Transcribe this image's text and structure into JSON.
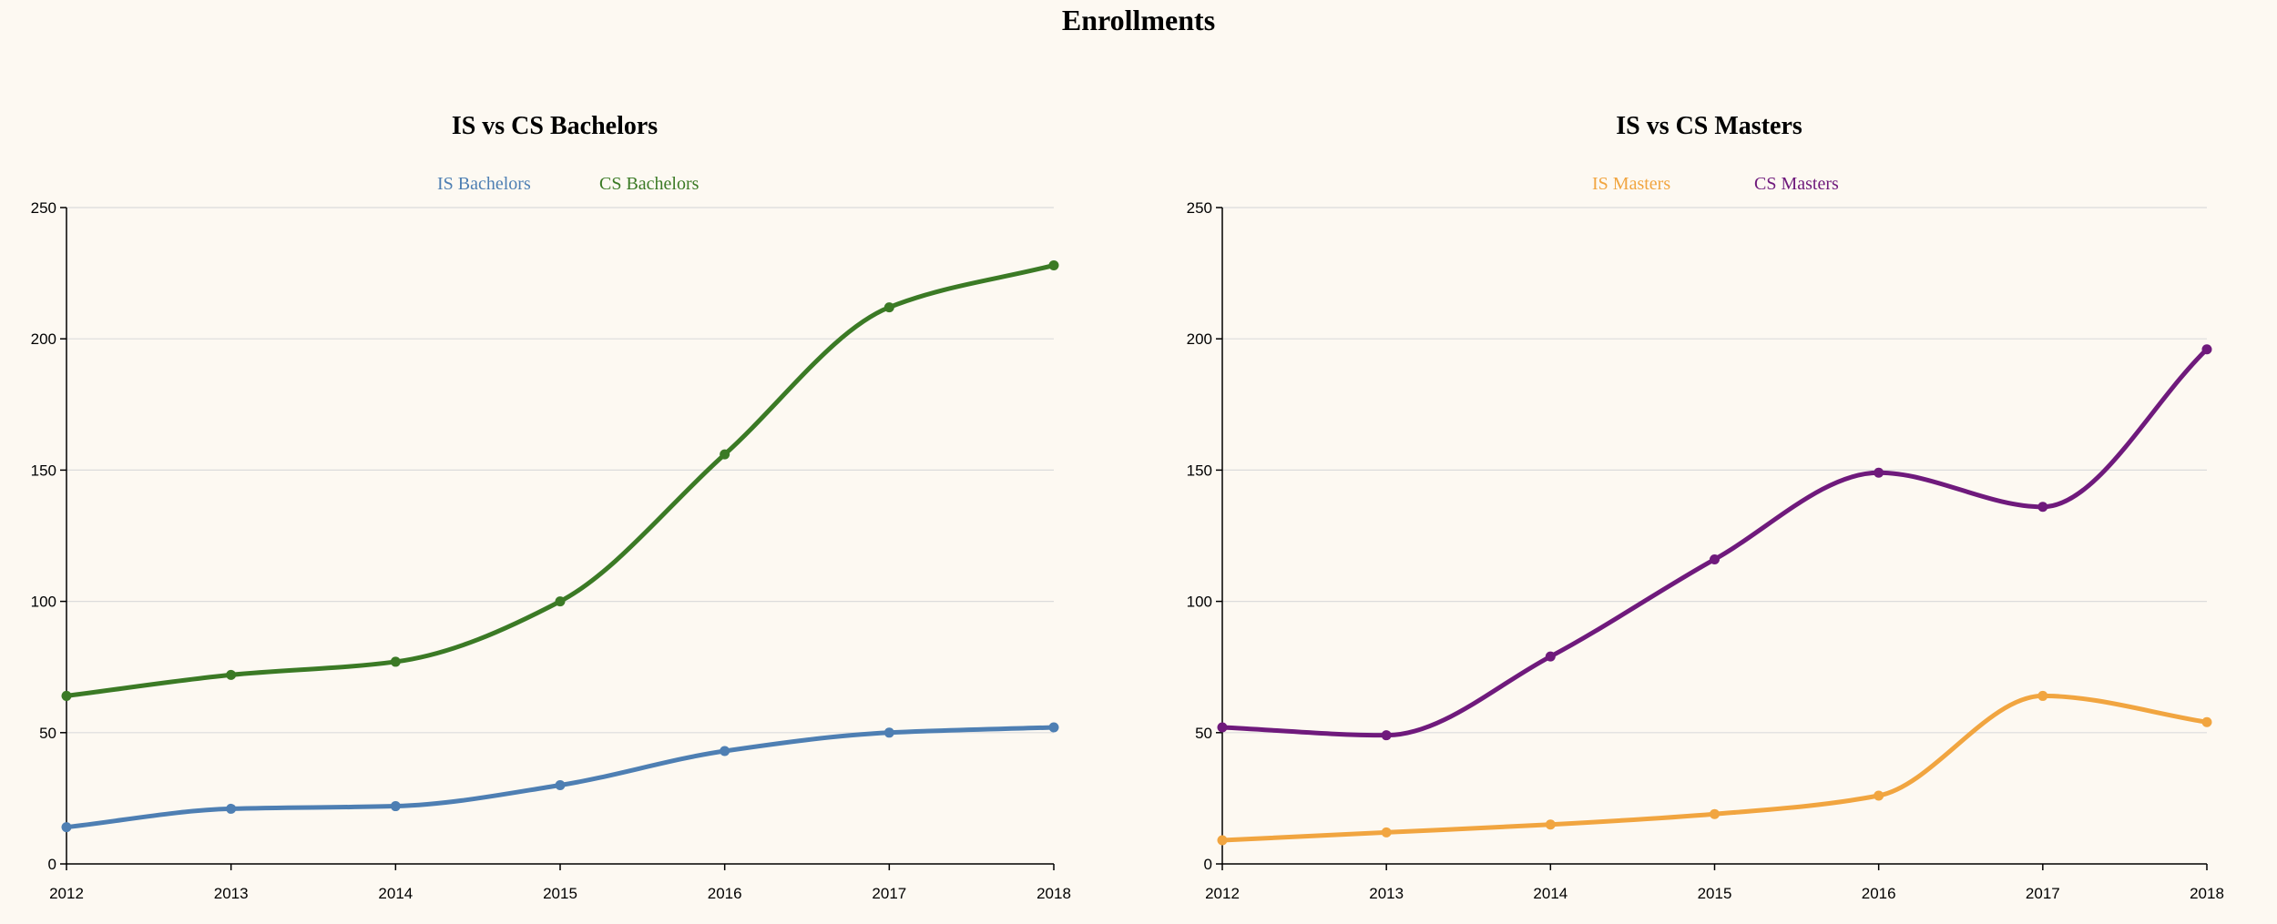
{
  "title": "Enrollments",
  "chart_data": [
    {
      "type": "line",
      "title": "IS vs CS Bachelors",
      "xlabel": "",
      "ylabel": "",
      "x": [
        2012,
        2013,
        2014,
        2015,
        2016,
        2017,
        2018
      ],
      "ylim": [
        0,
        250
      ],
      "yticks": [
        0,
        50,
        100,
        150,
        200,
        250
      ],
      "grid": true,
      "legend_position": "top-center",
      "series": [
        {
          "name": "IS Bachelors",
          "color": "#4e7fb3",
          "values": [
            14,
            21,
            22,
            30,
            43,
            50,
            52
          ]
        },
        {
          "name": "CS Bachelors",
          "color": "#3b7a25",
          "values": [
            64,
            72,
            77,
            100,
            156,
            212,
            228
          ]
        }
      ]
    },
    {
      "type": "line",
      "title": "IS vs CS Masters",
      "xlabel": "",
      "ylabel": "",
      "x": [
        2012,
        2013,
        2014,
        2015,
        2016,
        2017,
        2018
      ],
      "ylim": [
        0,
        250
      ],
      "yticks": [
        0,
        50,
        100,
        150,
        200,
        250
      ],
      "grid": true,
      "legend_position": "top-center",
      "series": [
        {
          "name": "IS Masters",
          "color": "#f1a540",
          "values": [
            9,
            12,
            15,
            19,
            26,
            64,
            54
          ]
        },
        {
          "name": "CS Masters",
          "color": "#6f1a7c",
          "values": [
            52,
            49,
            79,
            116,
            149,
            136,
            196
          ]
        }
      ]
    }
  ]
}
